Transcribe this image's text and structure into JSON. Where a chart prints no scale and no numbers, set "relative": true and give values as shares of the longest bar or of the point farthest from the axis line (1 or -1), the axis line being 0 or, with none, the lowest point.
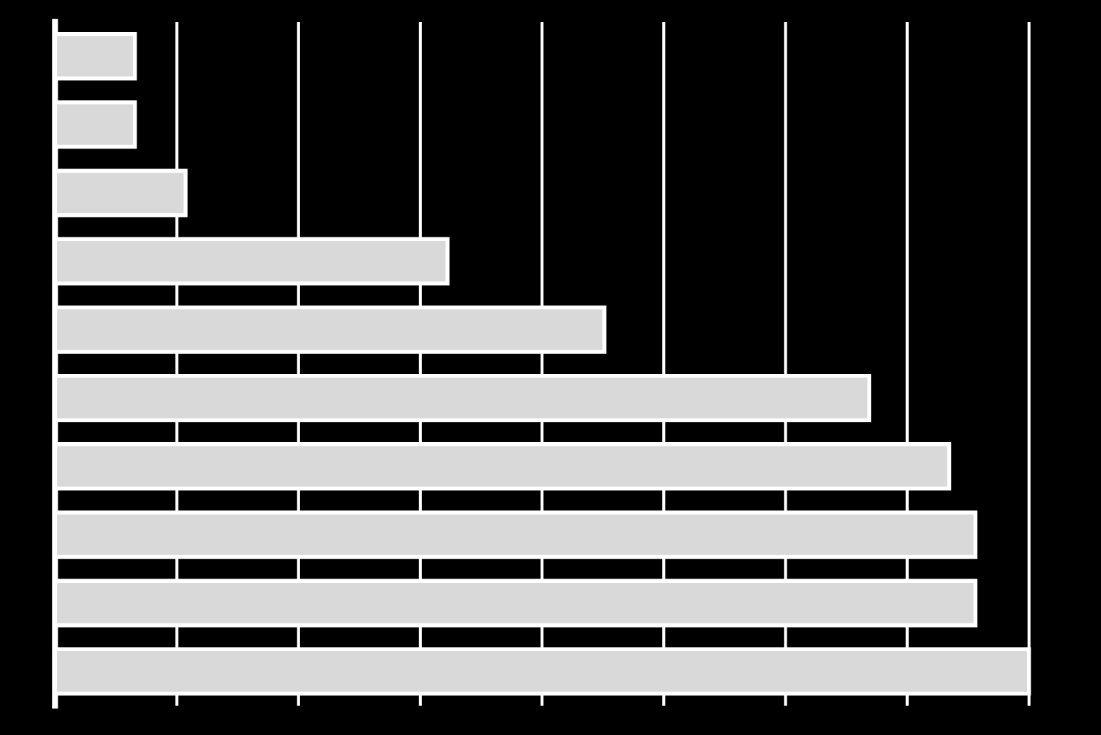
{
  "chart_data": {
    "type": "bar",
    "orientation": "horizontal",
    "relative": true,
    "categories": [
      null,
      null,
      null,
      null,
      null,
      null,
      null,
      null,
      null,
      null
    ],
    "values": [
      0.082,
      0.082,
      0.134,
      0.403,
      0.564,
      0.836,
      0.918,
      0.945,
      0.945,
      1
    ],
    "color": "#d9d9d9",
    "grid": "x"
  }
}
